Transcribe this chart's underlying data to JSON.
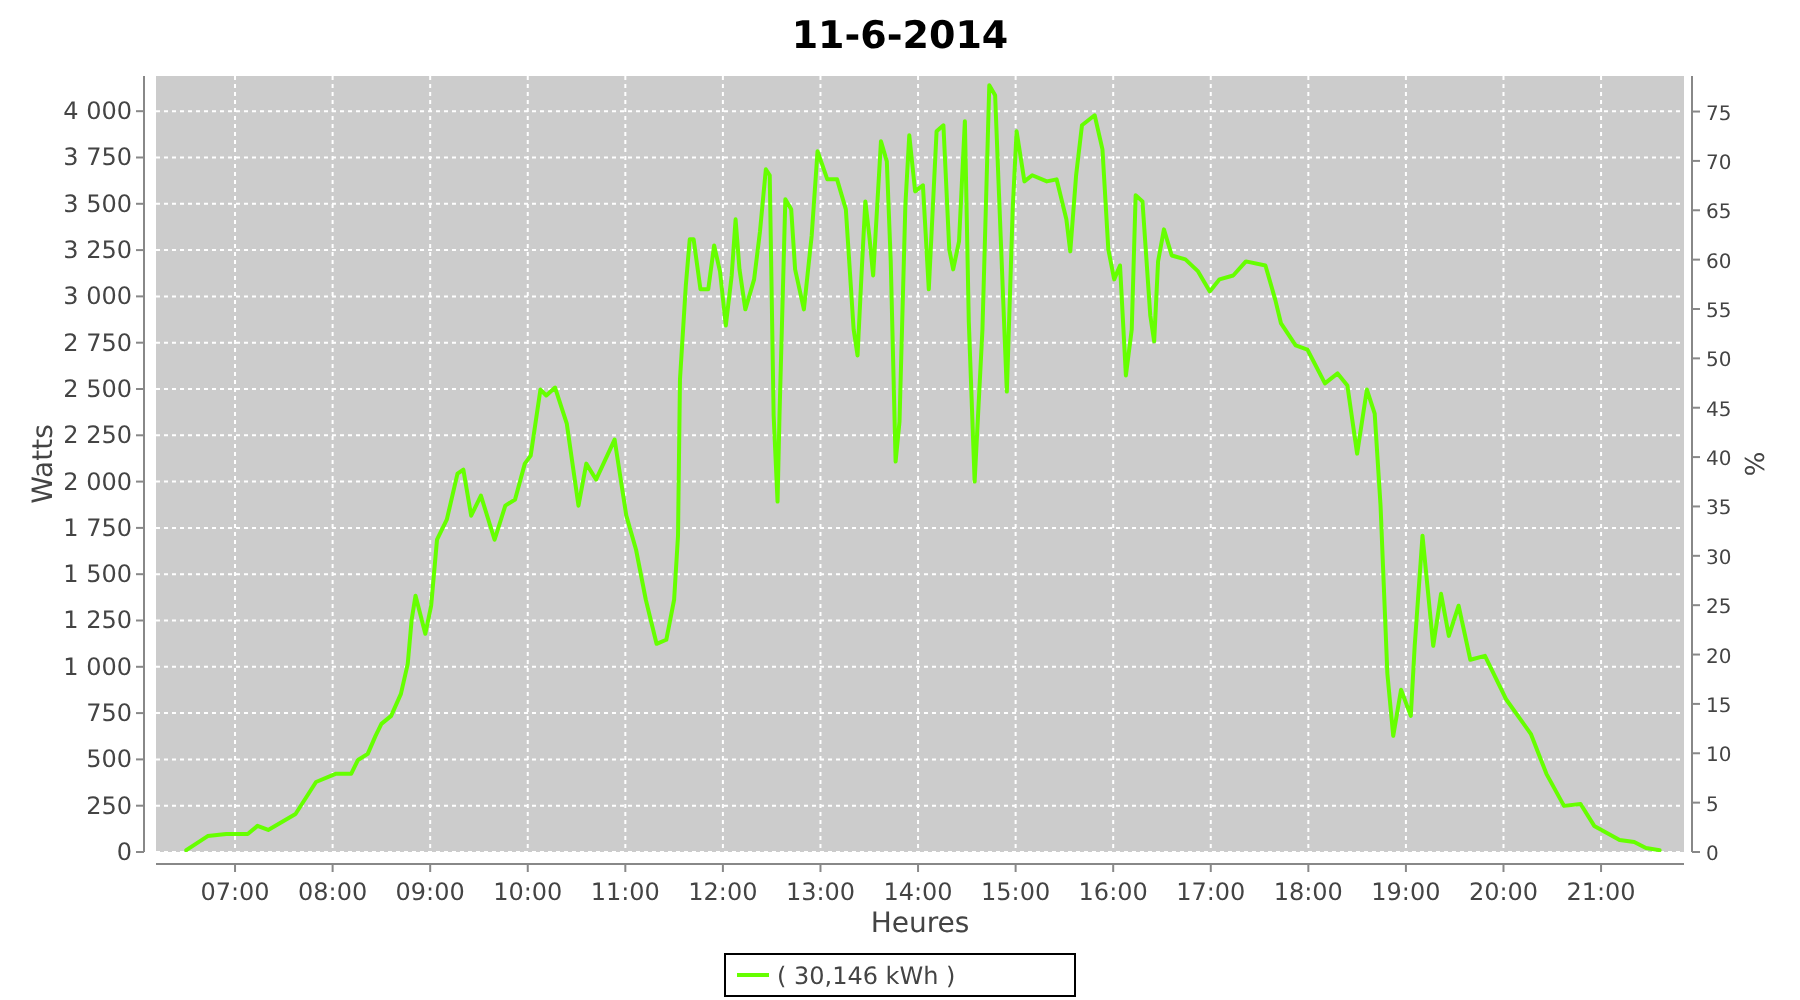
{
  "chart_data": {
    "type": "line",
    "title": "11-6-2014",
    "xlabel": "Heures",
    "ylabel": "Watts",
    "y2label": "%",
    "xlim": [
      6.19,
      21.85
    ],
    "ylim": [
      0,
      4190
    ],
    "y2lim": [
      0,
      78.6
    ],
    "xticks": [
      {
        "value": 7,
        "label": "07:00"
      },
      {
        "value": 8,
        "label": "08:00"
      },
      {
        "value": 9,
        "label": "09:00"
      },
      {
        "value": 10,
        "label": "10:00"
      },
      {
        "value": 11,
        "label": "11:00"
      },
      {
        "value": 12,
        "label": "12:00"
      },
      {
        "value": 13,
        "label": "13:00"
      },
      {
        "value": 14,
        "label": "14:00"
      },
      {
        "value": 15,
        "label": "15:00"
      },
      {
        "value": 16,
        "label": "16:00"
      },
      {
        "value": 17,
        "label": "17:00"
      },
      {
        "value": 18,
        "label": "18:00"
      },
      {
        "value": 19,
        "label": "19:00"
      },
      {
        "value": 20,
        "label": "20:00"
      },
      {
        "value": 21,
        "label": "21:00"
      }
    ],
    "yticks": [
      0,
      250,
      500,
      750,
      {
        "value": 1000,
        "label": "1 000"
      },
      {
        "value": 1250,
        "label": "1 250"
      },
      {
        "value": 1500,
        "label": "1 500"
      },
      {
        "value": 1750,
        "label": "1 750"
      },
      {
        "value": 2000,
        "label": "2 000"
      },
      {
        "value": 2250,
        "label": "2 250"
      },
      {
        "value": 2500,
        "label": "2 500"
      },
      {
        "value": 2750,
        "label": "2 750"
      },
      {
        "value": 3000,
        "label": "3 000"
      },
      {
        "value": 3250,
        "label": "3 250"
      },
      {
        "value": 3500,
        "label": "3 500"
      },
      {
        "value": 3750,
        "label": "3 750"
      },
      {
        "value": 4000,
        "label": "4 000"
      }
    ],
    "y2ticks": [
      0,
      5,
      10,
      15,
      20,
      25,
      30,
      35,
      40,
      45,
      50,
      55,
      60,
      65,
      70,
      75
    ],
    "grid": true,
    "legend": "bottom",
    "line_style": "solid",
    "marker": "none",
    "x": [
      6.5,
      6.72,
      6.91,
      7.13,
      7.23,
      7.34,
      7.62,
      7.83,
      8.03,
      8.19,
      8.26,
      8.36,
      8.44,
      8.5,
      8.6,
      8.7,
      8.77,
      8.81,
      8.85,
      8.95,
      9.01,
      9.07,
      9.17,
      9.28,
      9.34,
      9.42,
      9.52,
      9.66,
      9.77,
      9.87,
      9.97,
      10.03,
      10.13,
      10.19,
      10.28,
      10.4,
      10.52,
      10.6,
      10.7,
      10.89,
      11.01,
      11.11,
      11.21,
      11.32,
      11.42,
      11.5,
      11.54,
      11.56,
      11.62,
      11.66,
      11.7,
      11.77,
      11.85,
      11.91,
      11.97,
      12.03,
      12.09,
      12.13,
      12.17,
      12.23,
      12.32,
      12.38,
      12.44,
      12.48,
      12.52,
      12.56,
      12.58,
      12.64,
      12.7,
      12.74,
      12.83,
      12.91,
      12.97,
      13.07,
      13.17,
      13.26,
      13.34,
      13.38,
      13.42,
      13.46,
      13.5,
      13.54,
      13.62,
      13.68,
      13.72,
      13.77,
      13.81,
      13.87,
      13.91,
      13.97,
      14.05,
      14.11,
      14.19,
      14.26,
      14.32,
      14.36,
      14.42,
      14.48,
      14.52,
      14.58,
      14.66,
      14.73,
      14.79,
      14.83,
      14.91,
      14.97,
      15.01,
      15.09,
      15.17,
      15.32,
      15.42,
      15.52,
      15.56,
      15.62,
      15.68,
      15.81,
      15.89,
      15.95,
      16.01,
      16.07,
      16.13,
      16.19,
      16.23,
      16.3,
      16.38,
      16.42,
      16.46,
      16.52,
      16.6,
      16.74,
      16.87,
      16.99,
      17.09,
      17.23,
      17.36,
      17.56,
      17.66,
      17.72,
      17.87,
      17.99,
      18.17,
      18.3,
      18.4,
      18.5,
      18.6,
      18.68,
      18.74,
      18.81,
      18.87,
      18.95,
      19.05,
      19.09,
      19.17,
      19.28,
      19.36,
      19.44,
      19.54,
      19.66,
      19.81,
      20.03,
      20.28,
      20.44,
      20.62,
      20.79,
      20.93,
      21.19,
      21.34,
      21.46,
      21.6
    ],
    "series": [
      {
        "name": "( 30,146 kWh )",
        "color": "#66ff00",
        "values": [
          10,
          86,
          97,
          97,
          141,
          119,
          205,
          378,
          422,
          422,
          497,
          530,
          627,
          692,
          735,
          854,
          1016,
          1254,
          1384,
          1178,
          1330,
          1686,
          1794,
          2043,
          2065,
          1816,
          1924,
          1686,
          1870,
          1903,
          2097,
          2140,
          2497,
          2465,
          2508,
          2313,
          1870,
          2097,
          2011,
          2227,
          1816,
          1632,
          1362,
          1124,
          1146,
          1362,
          1708,
          2551,
          3059,
          3308,
          3308,
          3038,
          3038,
          3275,
          3135,
          2843,
          3113,
          3416,
          3146,
          2930,
          3092,
          3351,
          3686,
          3654,
          2357,
          1892,
          2357,
          3524,
          3470,
          3146,
          2930,
          3329,
          3784,
          3632,
          3632,
          3470,
          2821,
          2681,
          3113,
          3513,
          3329,
          3113,
          3838,
          3729,
          3189,
          2108,
          2324,
          3492,
          3870,
          3567,
          3600,
          3038,
          3892,
          3924,
          3254,
          3146,
          3297,
          3946,
          2865,
          2000,
          2821,
          4140,
          4086,
          3546,
          2486,
          3470,
          3892,
          3621,
          3654,
          3621,
          3632,
          3416,
          3243,
          3654,
          3924,
          3978,
          3794,
          3254,
          3092,
          3167,
          2573,
          2821,
          3546,
          3513,
          2897,
          2757,
          3189,
          3362,
          3221,
          3200,
          3135,
          3027,
          3092,
          3113,
          3189,
          3167,
          2984,
          2854,
          2735,
          2713,
          2530,
          2584,
          2519,
          2151,
          2497,
          2367,
          1870,
          962,
          627,
          876,
          735,
          1113,
          1708,
          1113,
          1394,
          1167,
          1330,
          1038,
          1059,
          822,
          638,
          422,
          249,
          259,
          141,
          65,
          54,
          22,
          10
        ]
      }
    ]
  }
}
